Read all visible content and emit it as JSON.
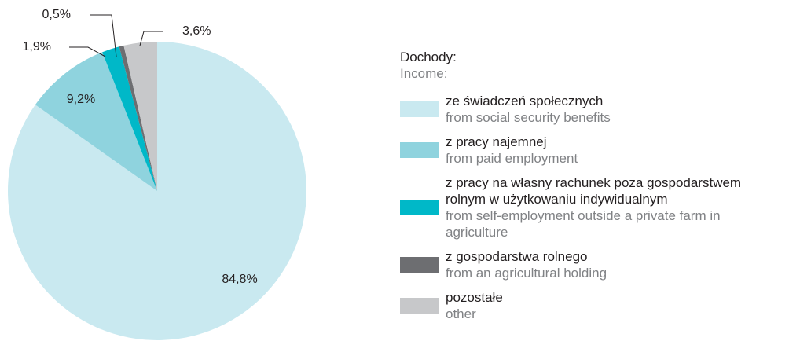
{
  "chart_data": {
    "type": "pie",
    "legend_title": "Dochody:",
    "legend_title_en": "Income:",
    "categories": [
      "ze świadczeń społecznych",
      "z pracy najemnej",
      "z pracy na własny rachunek poza gospodarstwem rolnym w użytkowaniu indywidualnym",
      "z gospodarstwa rolnego",
      "pozostałe"
    ],
    "categories_en": [
      "from social security benefits",
      "from paid employment",
      "from self-employment outside a private farm in agriculture",
      "from an agricultural holding",
      "other"
    ],
    "values": [
      84.8,
      9.2,
      1.9,
      0.5,
      3.6
    ],
    "value_labels": [
      "84,8%",
      "9,2%",
      "1,9%",
      "0,5%",
      "3,6%"
    ],
    "colors": [
      "#c9e9f0",
      "#8fd3de",
      "#00b8c8",
      "#6d6e71",
      "#c7c8ca"
    ],
    "legend": "right"
  }
}
